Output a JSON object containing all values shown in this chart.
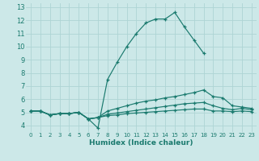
{
  "title": "",
  "xlabel": "Humidex (Indice chaleur)",
  "xlim": [
    -0.5,
    23.5
  ],
  "ylim": [
    3.5,
    13.3
  ],
  "yticks": [
    4,
    5,
    6,
    7,
    8,
    9,
    10,
    11,
    12,
    13
  ],
  "xticks": [
    0,
    1,
    2,
    3,
    4,
    5,
    6,
    7,
    8,
    9,
    10,
    11,
    12,
    13,
    14,
    15,
    16,
    17,
    18,
    19,
    20,
    21,
    22,
    23
  ],
  "background_color": "#cce8e8",
  "grid_color": "#aed4d4",
  "line_color": "#1a7a6e",
  "curves": [
    {
      "x": [
        0,
        1,
        2,
        3,
        4,
        5,
        6,
        7,
        8,
        9,
        10,
        11,
        12,
        13,
        14,
        15,
        16,
        17,
        18,
        19,
        20,
        21,
        22,
        23
      ],
      "y": [
        5.1,
        5.1,
        4.8,
        4.9,
        4.9,
        5.0,
        4.5,
        3.8,
        7.5,
        8.8,
        10.0,
        11.0,
        11.8,
        12.1,
        12.1,
        12.6,
        11.5,
        10.5,
        9.5,
        null,
        null,
        null,
        null,
        null
      ]
    },
    {
      "x": [
        0,
        1,
        2,
        3,
        4,
        5,
        6,
        7,
        8,
        9,
        10,
        11,
        12,
        13,
        14,
        15,
        16,
        17,
        18,
        19,
        20,
        21,
        22,
        23
      ],
      "y": [
        5.1,
        5.1,
        4.8,
        4.9,
        4.9,
        5.0,
        4.5,
        4.6,
        5.1,
        5.3,
        5.5,
        5.7,
        5.85,
        5.95,
        6.1,
        6.2,
        6.35,
        6.5,
        6.7,
        6.2,
        6.1,
        5.5,
        5.4,
        5.3
      ]
    },
    {
      "x": [
        0,
        1,
        2,
        3,
        4,
        5,
        6,
        7,
        8,
        9,
        10,
        11,
        12,
        13,
        14,
        15,
        16,
        17,
        18,
        19,
        20,
        21,
        22,
        23
      ],
      "y": [
        5.1,
        5.1,
        4.8,
        4.9,
        4.9,
        5.0,
        4.5,
        4.6,
        4.85,
        4.95,
        5.05,
        5.15,
        5.25,
        5.35,
        5.45,
        5.55,
        5.65,
        5.7,
        5.75,
        5.5,
        5.3,
        5.2,
        5.3,
        5.2
      ]
    },
    {
      "x": [
        0,
        1,
        2,
        3,
        4,
        5,
        6,
        7,
        8,
        9,
        10,
        11,
        12,
        13,
        14,
        15,
        16,
        17,
        18,
        19,
        20,
        21,
        22,
        23
      ],
      "y": [
        5.1,
        5.1,
        4.8,
        4.9,
        4.9,
        5.0,
        4.5,
        4.6,
        4.75,
        4.8,
        4.9,
        4.95,
        5.0,
        5.05,
        5.1,
        5.15,
        5.2,
        5.25,
        5.25,
        5.1,
        5.1,
        5.05,
        5.1,
        5.05
      ]
    }
  ]
}
